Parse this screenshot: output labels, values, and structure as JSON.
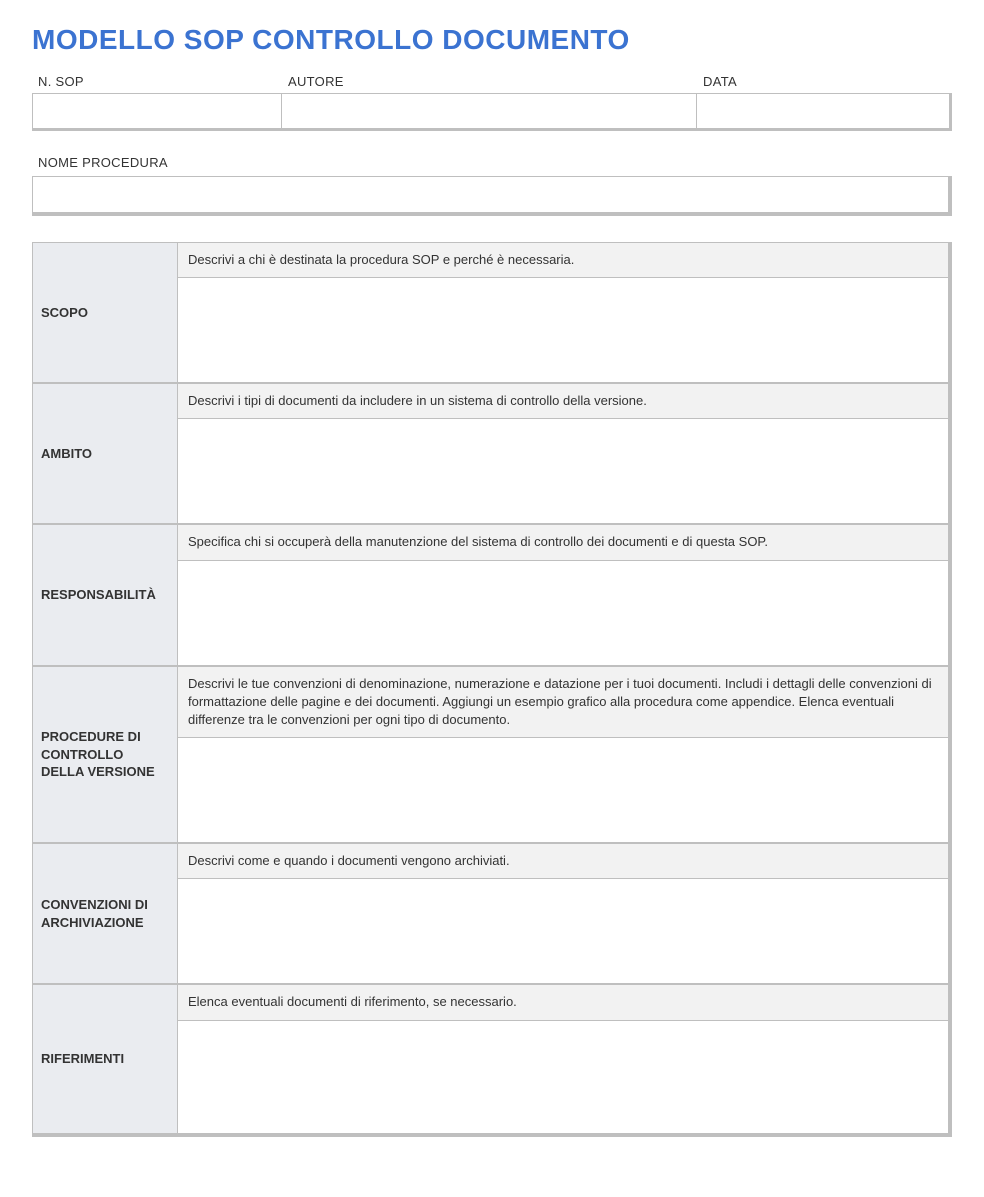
{
  "title": "MODELLO SOP CONTROLLO DOCUMENTO",
  "header": {
    "sop_label": "N. SOP",
    "author_label": "AUTORE",
    "date_label": "DATA",
    "sop_value": "",
    "author_value": "",
    "date_value": ""
  },
  "procedure": {
    "label": "NOME PROCEDURA",
    "value": ""
  },
  "sections": [
    {
      "label": "SCOPO",
      "description": "Descrivi a chi è destinata la procedura SOP e perché è necessaria.",
      "body_height": 104
    },
    {
      "label": "AMBITO",
      "description": "Descrivi i tipi di documenti da includere in un sistema di controllo della versione.",
      "body_height": 104
    },
    {
      "label": "RESPONSABILITÀ",
      "description": "Specifica chi si occuperà della manutenzione del sistema di controllo dei documenti e di questa SOP.",
      "body_height": 104
    },
    {
      "label": "PROCEDURE DI CONTROLLO DELLA VERSIONE",
      "description": "Descrivi le tue convenzioni di denominazione, numerazione e datazione per i tuoi documenti. Includi i dettagli delle convenzioni di formattazione delle pagine e dei documenti.  Aggiungi un esempio grafico alla procedura come appendice. Elenca eventuali differenze tra le convenzioni per ogni tipo di documento.",
      "body_height": 104
    },
    {
      "label": "CONVENZIONI DI ARCHIVIAZIONE",
      "description": "Descrivi come e quando i documenti vengono archiviati.",
      "body_height": 104
    },
    {
      "label": "RIFERIMENTI",
      "description": "Elenca eventuali documenti di riferimento, se necessario.",
      "body_height": 112
    }
  ],
  "colors": {
    "title": "#3b73d1",
    "border": "#bfbfbf",
    "label_bg": "#eaecf0",
    "desc_bg": "#f2f2f2",
    "body_bg": "#ffffff",
    "text": "#333333"
  }
}
